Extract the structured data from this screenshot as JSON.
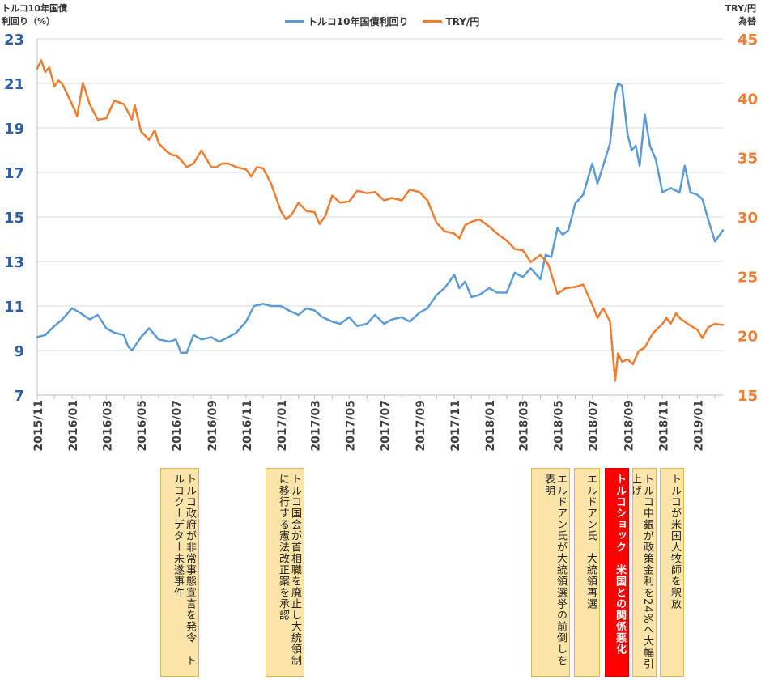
{
  "chart_data": {
    "type": "line",
    "legend": {
      "placement": "top-center"
    },
    "left_axis": {
      "title": [
        "トルコ10年国債",
        "利回り（%）"
      ],
      "ticks": [
        7,
        9,
        11,
        13,
        15,
        17,
        19,
        21,
        23
      ],
      "range": [
        7,
        23
      ]
    },
    "right_axis": {
      "title": [
        "TRY/円",
        "為替"
      ],
      "ticks": [
        15,
        20,
        25,
        30,
        35,
        40,
        45
      ],
      "range": [
        15,
        45
      ]
    },
    "x_axis": {
      "start": "2015-11",
      "end": "2019-02",
      "tick_labels": [
        "2015/11",
        "2016/01",
        "2016/03",
        "2016/05",
        "2016/07",
        "2016/09",
        "2016/11",
        "2017/01",
        "2017/03",
        "2017/05",
        "2017/07",
        "2017/09",
        "2017/11",
        "2018/01",
        "2018/03",
        "2018/05",
        "2018/07",
        "2018/09",
        "2018/11",
        "2019/01"
      ]
    },
    "series": [
      {
        "name": "トルコ10年国債利回り",
        "axis": "left",
        "color": "#5b9bd5",
        "points": [
          [
            "2015-11-01",
            9.6
          ],
          [
            "2015-11-15",
            9.7
          ],
          [
            "2015-12-01",
            10.1
          ],
          [
            "2015-12-15",
            10.4
          ],
          [
            "2016-01-01",
            10.9
          ],
          [
            "2016-01-15",
            10.7
          ],
          [
            "2016-02-01",
            10.4
          ],
          [
            "2016-02-15",
            10.6
          ],
          [
            "2016-03-01",
            10.0
          ],
          [
            "2016-03-15",
            9.8
          ],
          [
            "2016-04-01",
            9.7
          ],
          [
            "2016-04-08",
            9.2
          ],
          [
            "2016-04-15",
            9.0
          ],
          [
            "2016-05-01",
            9.6
          ],
          [
            "2016-05-15",
            10.0
          ],
          [
            "2016-06-01",
            9.5
          ],
          [
            "2016-06-20",
            9.4
          ],
          [
            "2016-07-01",
            9.5
          ],
          [
            "2016-07-10",
            8.9
          ],
          [
            "2016-07-20",
            8.9
          ],
          [
            "2016-08-01",
            9.7
          ],
          [
            "2016-08-15",
            9.5
          ],
          [
            "2016-09-01",
            9.6
          ],
          [
            "2016-09-15",
            9.4
          ],
          [
            "2016-10-01",
            9.6
          ],
          [
            "2016-10-15",
            9.8
          ],
          [
            "2016-11-01",
            10.3
          ],
          [
            "2016-11-15",
            11.0
          ],
          [
            "2016-12-01",
            11.1
          ],
          [
            "2016-12-15",
            11.0
          ],
          [
            "2017-01-01",
            11.0
          ],
          [
            "2017-01-15",
            10.8
          ],
          [
            "2017-02-01",
            10.6
          ],
          [
            "2017-02-15",
            10.9
          ],
          [
            "2017-03-01",
            10.8
          ],
          [
            "2017-03-15",
            10.5
          ],
          [
            "2017-04-01",
            10.3
          ],
          [
            "2017-04-15",
            10.2
          ],
          [
            "2017-05-01",
            10.5
          ],
          [
            "2017-05-15",
            10.1
          ],
          [
            "2017-06-01",
            10.2
          ],
          [
            "2017-06-15",
            10.6
          ],
          [
            "2017-07-01",
            10.2
          ],
          [
            "2017-07-15",
            10.4
          ],
          [
            "2017-08-01",
            10.5
          ],
          [
            "2017-08-15",
            10.3
          ],
          [
            "2017-09-01",
            10.7
          ],
          [
            "2017-09-15",
            10.9
          ],
          [
            "2017-10-01",
            11.5
          ],
          [
            "2017-10-15",
            11.8
          ],
          [
            "2017-11-01",
            12.4
          ],
          [
            "2017-11-10",
            11.8
          ],
          [
            "2017-11-20",
            12.1
          ],
          [
            "2017-12-01",
            11.4
          ],
          [
            "2017-12-15",
            11.5
          ],
          [
            "2018-01-01",
            11.8
          ],
          [
            "2018-01-15",
            11.6
          ],
          [
            "2018-02-01",
            11.6
          ],
          [
            "2018-02-15",
            12.5
          ],
          [
            "2018-03-01",
            12.3
          ],
          [
            "2018-03-15",
            12.7
          ],
          [
            "2018-04-01",
            12.2
          ],
          [
            "2018-04-10",
            13.3
          ],
          [
            "2018-04-20",
            13.2
          ],
          [
            "2018-05-01",
            14.5
          ],
          [
            "2018-05-10",
            14.2
          ],
          [
            "2018-05-20",
            14.4
          ],
          [
            "2018-06-01",
            15.6
          ],
          [
            "2018-06-15",
            16.0
          ],
          [
            "2018-07-01",
            17.4
          ],
          [
            "2018-07-10",
            16.5
          ],
          [
            "2018-07-20",
            17.3
          ],
          [
            "2018-08-01",
            18.3
          ],
          [
            "2018-08-10",
            20.5
          ],
          [
            "2018-08-15",
            21.0
          ],
          [
            "2018-08-22",
            20.9
          ],
          [
            "2018-09-01",
            18.7
          ],
          [
            "2018-09-08",
            18.0
          ],
          [
            "2018-09-15",
            18.2
          ],
          [
            "2018-09-22",
            17.3
          ],
          [
            "2018-10-01",
            19.6
          ],
          [
            "2018-10-10",
            18.2
          ],
          [
            "2018-10-20",
            17.6
          ],
          [
            "2018-11-01",
            16.1
          ],
          [
            "2018-11-15",
            16.3
          ],
          [
            "2018-12-01",
            16.1
          ],
          [
            "2018-12-10",
            17.3
          ],
          [
            "2018-12-20",
            16.1
          ],
          [
            "2019-01-01",
            16.0
          ],
          [
            "2019-01-10",
            15.8
          ],
          [
            "2019-01-20",
            14.9
          ],
          [
            "2019-02-01",
            13.9
          ],
          [
            "2019-02-15",
            14.4
          ]
        ]
      },
      {
        "name": "TRY/円",
        "axis": "right",
        "color": "#ed7d31",
        "points": [
          [
            "2015-11-01",
            42.5
          ],
          [
            "2015-11-08",
            43.2
          ],
          [
            "2015-11-15",
            42.2
          ],
          [
            "2015-11-22",
            42.6
          ],
          [
            "2015-12-01",
            41.0
          ],
          [
            "2015-12-08",
            41.5
          ],
          [
            "2015-12-15",
            41.2
          ],
          [
            "2016-01-01",
            39.5
          ],
          [
            "2016-01-10",
            38.5
          ],
          [
            "2016-01-20",
            41.3
          ],
          [
            "2016-02-01",
            39.5
          ],
          [
            "2016-02-15",
            38.2
          ],
          [
            "2016-03-01",
            38.3
          ],
          [
            "2016-03-15",
            39.8
          ],
          [
            "2016-04-01",
            39.5
          ],
          [
            "2016-04-15",
            38.2
          ],
          [
            "2016-04-20",
            39.4
          ],
          [
            "2016-05-01",
            37.2
          ],
          [
            "2016-05-15",
            36.5
          ],
          [
            "2016-05-25",
            37.3
          ],
          [
            "2016-06-01",
            36.2
          ],
          [
            "2016-06-15",
            35.5
          ],
          [
            "2016-06-25",
            35.2
          ],
          [
            "2016-07-01",
            35.2
          ],
          [
            "2016-07-10",
            34.8
          ],
          [
            "2016-07-20",
            34.2
          ],
          [
            "2016-08-01",
            34.5
          ],
          [
            "2016-08-15",
            35.6
          ],
          [
            "2016-09-01",
            34.2
          ],
          [
            "2016-09-10",
            34.2
          ],
          [
            "2016-09-20",
            34.5
          ],
          [
            "2016-10-01",
            34.5
          ],
          [
            "2016-10-15",
            34.2
          ],
          [
            "2016-11-01",
            34.0
          ],
          [
            "2016-11-10",
            33.4
          ],
          [
            "2016-11-20",
            34.2
          ],
          [
            "2016-12-01",
            34.1
          ],
          [
            "2016-12-15",
            32.8
          ],
          [
            "2017-01-01",
            30.5
          ],
          [
            "2017-01-10",
            29.8
          ],
          [
            "2017-01-20",
            30.2
          ],
          [
            "2017-02-01",
            31.2
          ],
          [
            "2017-02-15",
            30.5
          ],
          [
            "2017-03-01",
            30.4
          ],
          [
            "2017-03-10",
            29.4
          ],
          [
            "2017-03-20",
            30.1
          ],
          [
            "2017-04-01",
            31.8
          ],
          [
            "2017-04-15",
            31.2
          ],
          [
            "2017-05-01",
            31.3
          ],
          [
            "2017-05-15",
            32.2
          ],
          [
            "2017-06-01",
            32.0
          ],
          [
            "2017-06-15",
            32.1
          ],
          [
            "2017-07-01",
            31.4
          ],
          [
            "2017-07-15",
            31.6
          ],
          [
            "2017-08-01",
            31.4
          ],
          [
            "2017-08-15",
            32.3
          ],
          [
            "2017-09-01",
            32.1
          ],
          [
            "2017-09-15",
            31.4
          ],
          [
            "2017-10-01",
            29.5
          ],
          [
            "2017-10-15",
            28.8
          ],
          [
            "2017-11-01",
            28.6
          ],
          [
            "2017-11-10",
            28.2
          ],
          [
            "2017-11-20",
            29.3
          ],
          [
            "2017-12-01",
            29.6
          ],
          [
            "2017-12-15",
            29.8
          ],
          [
            "2018-01-01",
            29.2
          ],
          [
            "2018-01-15",
            28.6
          ],
          [
            "2018-02-01",
            28.0
          ],
          [
            "2018-02-15",
            27.3
          ],
          [
            "2018-03-01",
            27.2
          ],
          [
            "2018-03-15",
            26.2
          ],
          [
            "2018-04-01",
            26.8
          ],
          [
            "2018-04-15",
            26.0
          ],
          [
            "2018-05-01",
            23.5
          ],
          [
            "2018-05-15",
            24.0
          ],
          [
            "2018-06-01",
            24.1
          ],
          [
            "2018-06-15",
            24.3
          ],
          [
            "2018-07-01",
            22.6
          ],
          [
            "2018-07-10",
            21.5
          ],
          [
            "2018-07-20",
            22.3
          ],
          [
            "2018-08-01",
            21.2
          ],
          [
            "2018-08-10",
            16.2
          ],
          [
            "2018-08-15",
            18.5
          ],
          [
            "2018-08-22",
            17.8
          ],
          [
            "2018-09-01",
            18.0
          ],
          [
            "2018-09-10",
            17.6
          ],
          [
            "2018-09-20",
            18.7
          ],
          [
            "2018-10-01",
            19.0
          ],
          [
            "2018-10-15",
            20.2
          ],
          [
            "2018-11-01",
            21.0
          ],
          [
            "2018-11-08",
            21.5
          ],
          [
            "2018-11-15",
            21.0
          ],
          [
            "2018-11-25",
            21.9
          ],
          [
            "2018-12-01",
            21.5
          ],
          [
            "2018-12-15",
            21.0
          ],
          [
            "2019-01-01",
            20.5
          ],
          [
            "2019-01-10",
            19.8
          ],
          [
            "2019-01-20",
            20.7
          ],
          [
            "2019-02-01",
            21.0
          ],
          [
            "2019-02-15",
            20.9
          ]
        ]
      }
    ]
  },
  "annotations": [
    {
      "text": "トルコ政府が非常事態宣言を発令　トルコクーデター未遂事件",
      "style": "normal"
    },
    {
      "text": "トルコ国会が首相職を廃止し大統領制に移行する憲法改正案を承認",
      "style": "normal"
    },
    {
      "text": "エルドアン氏が大統領選挙の前倒しを表明",
      "style": "normal"
    },
    {
      "text": "エルドアン氏　大統領再選",
      "style": "normal"
    },
    {
      "text": "トルコショック　米国との関係悪化",
      "style": "red"
    },
    {
      "text": "トルコ中銀が政策金利を24%へ大幅引上げ",
      "style": "normal"
    },
    {
      "text": "トルコが米国人牧師を釈放",
      "style": "normal"
    }
  ]
}
